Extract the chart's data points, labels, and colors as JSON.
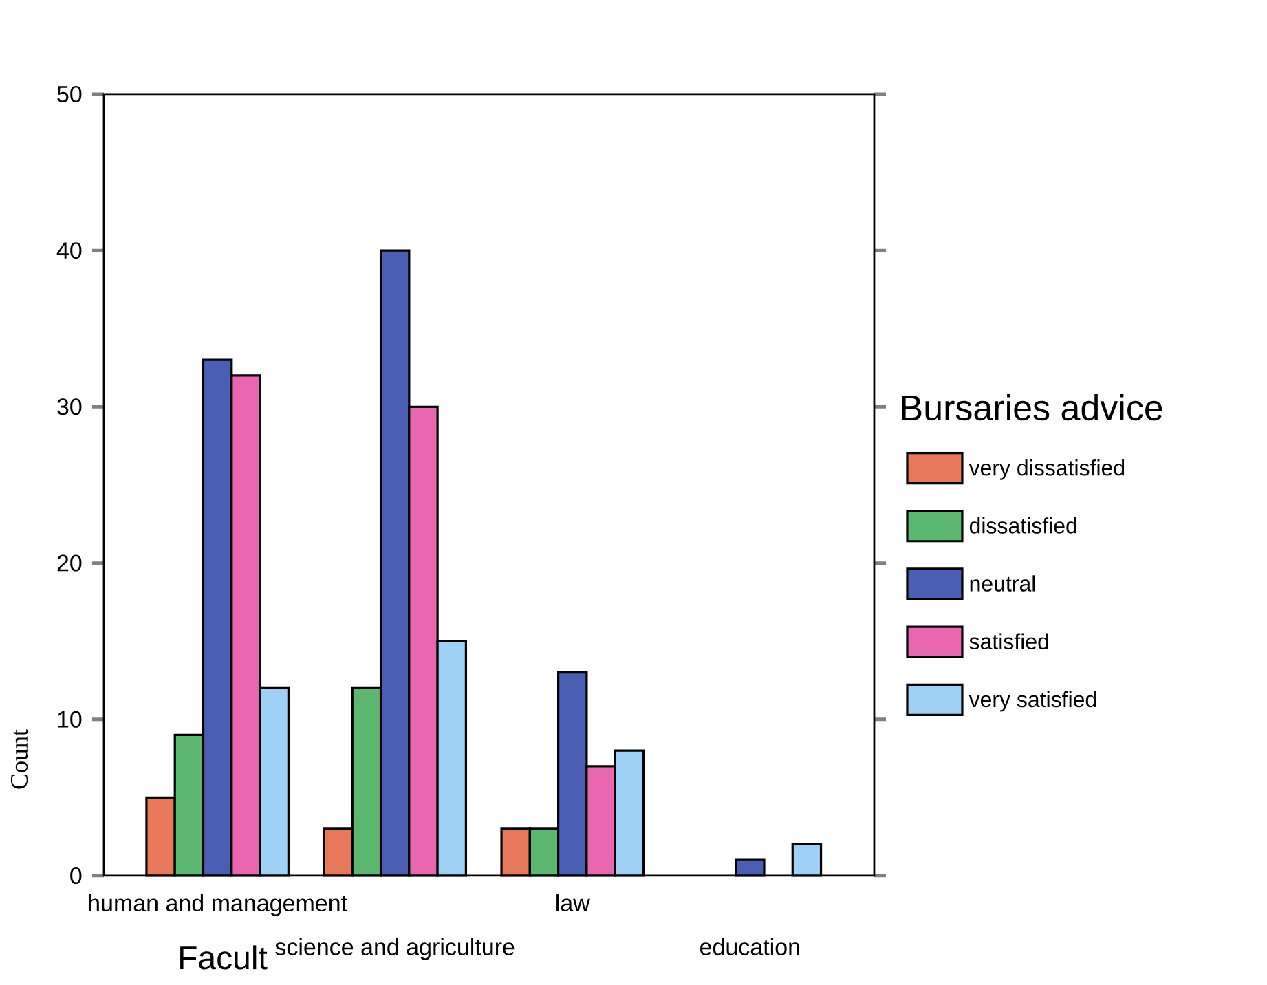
{
  "chart_data": {
    "type": "bar",
    "xlabel": "Facult",
    "ylabel": "Count",
    "legend_title": "Bursaries advice",
    "legend": "right",
    "categories": [
      "human and management",
      "science and agriculture",
      "law",
      "education"
    ],
    "ylim": [
      0,
      50
    ],
    "yticks": [
      0,
      10,
      20,
      30,
      40,
      50
    ],
    "series": [
      {
        "name": "very dissatisfied",
        "color": "#e8785a",
        "values": [
          5,
          3,
          3,
          null
        ]
      },
      {
        "name": "dissatisfied",
        "color": "#5cb870",
        "values": [
          9,
          12,
          3,
          null
        ]
      },
      {
        "name": "neutral",
        "color": "#4a5fb4",
        "values": [
          33,
          40,
          13,
          1
        ]
      },
      {
        "name": "satisfied",
        "color": "#e867b0",
        "values": [
          32,
          30,
          7,
          null
        ]
      },
      {
        "name": "very satisfied",
        "color": "#9fd0f5",
        "values": [
          12,
          15,
          8,
          2
        ]
      }
    ]
  }
}
